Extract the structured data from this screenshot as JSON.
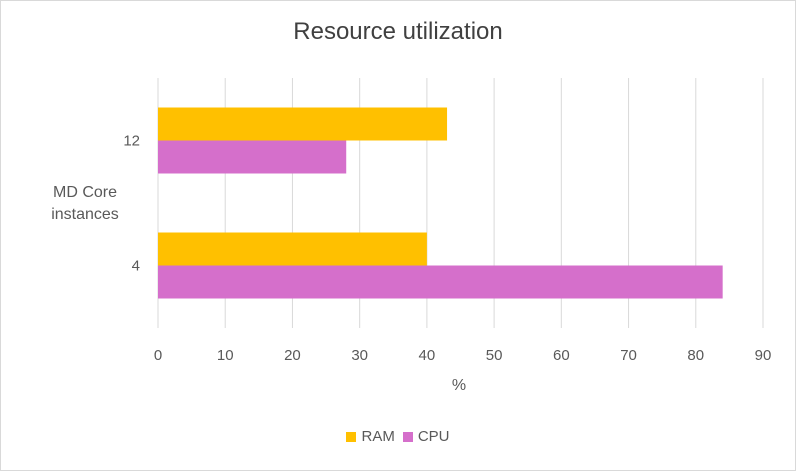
{
  "chart_data": {
    "type": "bar",
    "orientation": "horizontal",
    "title": "Resource utilization",
    "xlabel": "%",
    "ylabel": "MD Core instances",
    "categories": [
      "12",
      "4"
    ],
    "series": [
      {
        "name": "RAM",
        "color": "#FFC000",
        "values": [
          43,
          40
        ]
      },
      {
        "name": "CPU",
        "color": "#D56FCB",
        "values": [
          28,
          84
        ]
      }
    ],
    "xlim": [
      0,
      90
    ],
    "xticks": [
      0,
      10,
      20,
      30,
      40,
      50,
      60,
      70,
      80,
      90
    ],
    "grid": true,
    "legend_position": "bottom"
  }
}
